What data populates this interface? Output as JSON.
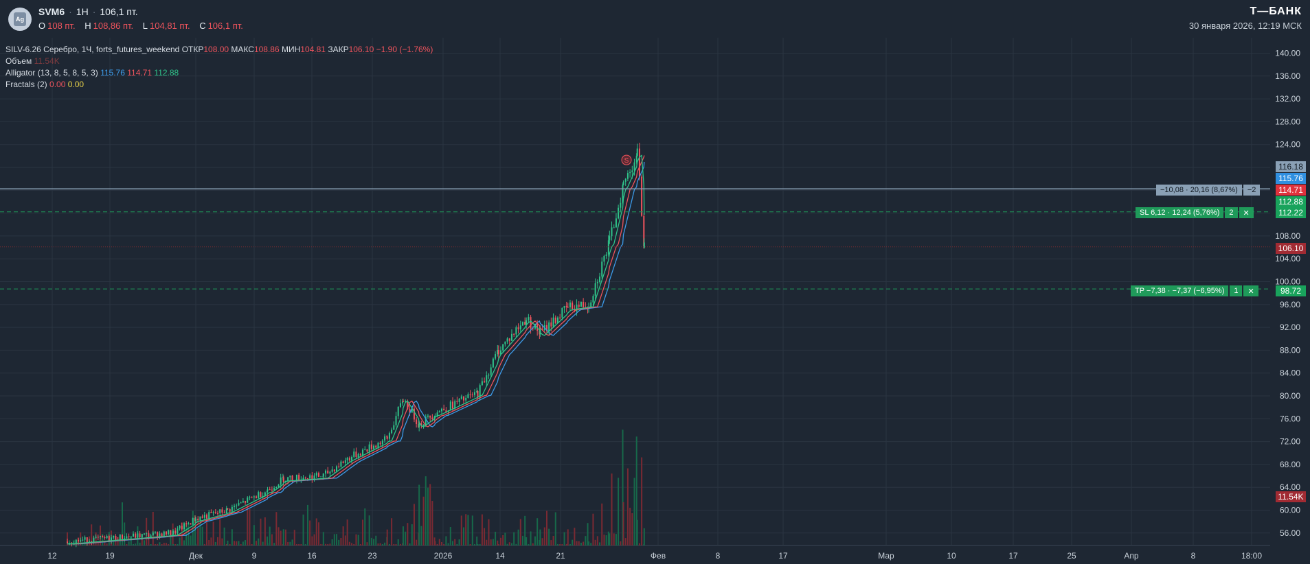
{
  "header": {
    "ticker": "SVM6",
    "interval": "1H",
    "price": "106,1 пт.",
    "ohlc": [
      {
        "label": "O",
        "value": "108 пт."
      },
      {
        "label": "H",
        "value": "108,86 пт."
      },
      {
        "label": "L",
        "value": "104,81 пт."
      },
      {
        "label": "C",
        "value": "106,1 пт."
      }
    ],
    "logo_text": "Ag",
    "brand": "Т—БАНК",
    "datetime": "30 января 2026, 12:19 МСК"
  },
  "legend": {
    "instrument": "SILV-6.26 Серебро, 1Ч, forts_futures_weekend",
    "open_label": "ОТКР",
    "open": "108.00",
    "high_label": "МАКС",
    "high": "108.86",
    "low_label": "МИН",
    "low": "104.81",
    "close_label": "ЗАКР",
    "close": "106.10",
    "change": "−1.90 (−1.76%)",
    "volume_label": "Объем",
    "volume": "11.54K",
    "alligator_label": "Alligator (13, 8, 5, 8, 5, 3)",
    "alligator_jaw": "115.76",
    "alligator_teeth": "114.71",
    "alligator_lips": "112.88",
    "fractals_label": "Fractals (2)",
    "fractal_up": "0.00",
    "fractal_down": "0.00"
  },
  "orders": {
    "position": {
      "text": "−10,08 · 20,16 (8,67%)",
      "qty": "−2",
      "price": "116.18"
    },
    "sl": {
      "text": "SL 6,12 · 12,24 (5,76%)",
      "qty": "2",
      "close": "✕",
      "price": "112.22"
    },
    "tp": {
      "text": "TP −7,38 · −7,37 (−6,95%)",
      "qty": "1",
      "close": "✕",
      "price": "98.72"
    }
  },
  "badges": {
    "jaw": "115.76",
    "teeth": "114.71",
    "lips": "112.88",
    "last": "106.10",
    "volume": "11.54K"
  },
  "signal_marker": "S",
  "colors": {
    "background": "#1e2733",
    "up": "#2fc48a",
    "down": "#f0545d",
    "jaw": "#3d9be9",
    "teeth": "#f0545d",
    "lips": "#2fc48a",
    "order_green": "#1f9a5a"
  },
  "chart_data": {
    "type": "candlestick",
    "ylim": [
      54,
      142
    ],
    "y_ticks": [
      "140.00",
      "136.00",
      "132.00",
      "128.00",
      "124.00",
      "120.00",
      "116.00",
      "112.00",
      "108.00",
      "104.00",
      "100.00",
      "96.00",
      "92.00",
      "88.00",
      "84.00",
      "80.00",
      "76.00",
      "72.00",
      "68.00",
      "64.00",
      "60.00",
      "56.00"
    ],
    "x_ticks": [
      "12",
      "19",
      "Дек",
      "9",
      "16",
      "23",
      "2026",
      "14",
      "21",
      "Фев",
      "8",
      "17",
      "Мар",
      "10",
      "17",
      "25",
      "Апр",
      "8",
      "18:00"
    ],
    "price_path": [
      {
        "x": "Nov 14",
        "y": 54.5
      },
      {
        "x": "Nov 28",
        "y": 56.0
      },
      {
        "x": "Dec 1",
        "y": 58.5
      },
      {
        "x": "Dec 5",
        "y": 60.0
      },
      {
        "x": "Dec 10",
        "y": 63.5
      },
      {
        "x": "Dec 12",
        "y": 65.5
      },
      {
        "x": "Dec 17",
        "y": 66.0
      },
      {
        "x": "Dec 20",
        "y": 69.0
      },
      {
        "x": "Dec 25",
        "y": 72.5
      },
      {
        "x": "Dec 27",
        "y": 79.5
      },
      {
        "x": "Dec 29",
        "y": 75.0
      },
      {
        "x": "Dec 31",
        "y": 77.0
      },
      {
        "x": "Jan 6",
        "y": 80.5
      },
      {
        "x": "Jan 9",
        "y": 88.0
      },
      {
        "x": "Jan 13",
        "y": 93.5
      },
      {
        "x": "Jan 15",
        "y": 91.0
      },
      {
        "x": "Jan 19",
        "y": 95.5
      },
      {
        "x": "Jan 22",
        "y": 96.0
      },
      {
        "x": "Jan 25",
        "y": 107.0
      },
      {
        "x": "Jan 27",
        "y": 117.0
      },
      {
        "x": "Jan 29",
        "y": 122.5
      },
      {
        "x": "Jan 30",
        "y": 106.1
      }
    ],
    "current_price": 106.1
  }
}
